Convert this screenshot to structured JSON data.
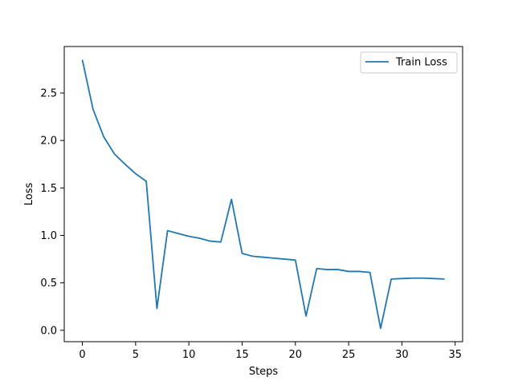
{
  "chart_data": {
    "type": "line",
    "title": "",
    "xlabel": "Steps",
    "ylabel": "Loss",
    "xlim": [
      -1.7,
      35.7
    ],
    "ylim": [
      -0.12,
      2.99
    ],
    "xticks": [
      0,
      5,
      10,
      15,
      20,
      25,
      30,
      35
    ],
    "yticks": [
      0.0,
      0.5,
      1.0,
      1.5,
      2.0,
      2.5
    ],
    "xtick_labels": [
      "0",
      "5",
      "10",
      "15",
      "20",
      "25",
      "30",
      "35"
    ],
    "ytick_labels": [
      "0.0",
      "0.5",
      "1.0",
      "1.5",
      "2.0",
      "2.5"
    ],
    "grid": false,
    "legend_position": "top-right",
    "series": [
      {
        "name": "Train Loss",
        "color": "#1f77b4",
        "x": [
          0,
          1,
          2,
          3,
          4,
          5,
          6,
          7,
          8,
          9,
          10,
          11,
          12,
          13,
          14,
          15,
          16,
          17,
          18,
          19,
          20,
          21,
          22,
          23,
          24,
          25,
          26,
          27,
          28,
          29,
          30,
          31,
          32,
          33,
          34
        ],
        "y": [
          2.85,
          2.33,
          2.04,
          1.86,
          1.75,
          1.65,
          1.57,
          0.23,
          1.05,
          1.02,
          0.99,
          0.97,
          0.94,
          0.93,
          1.38,
          0.81,
          0.78,
          0.77,
          0.76,
          0.75,
          0.74,
          0.15,
          0.65,
          0.64,
          0.64,
          0.62,
          0.62,
          0.61,
          0.02,
          0.54,
          0.545,
          0.55,
          0.55,
          0.545,
          0.54
        ]
      }
    ]
  }
}
